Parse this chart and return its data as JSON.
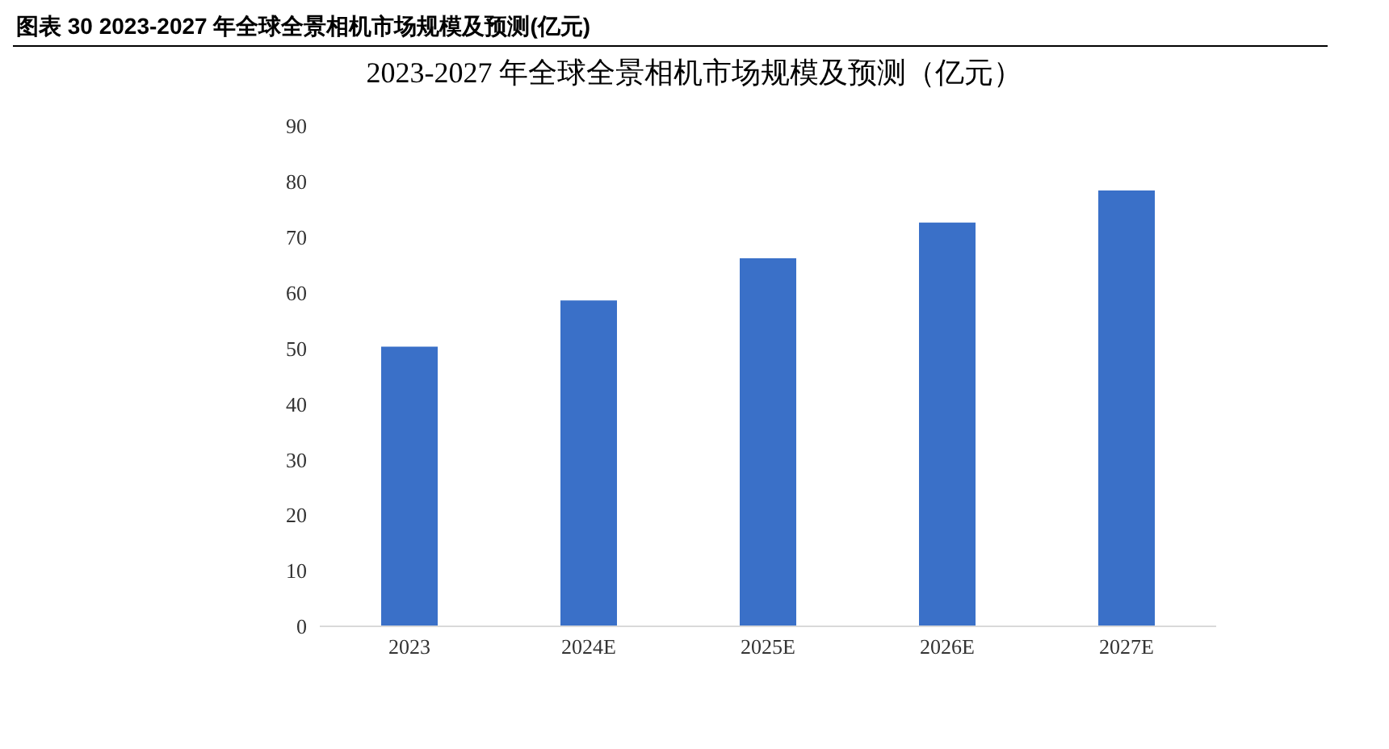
{
  "chart_data": {
    "type": "bar",
    "title": "图表 30 2023-2027 年全球全景相机市场规模及预测(亿元)",
    "subtitle": "2023-2027 年全球全景相机市场规模及预测（亿元）",
    "categories": [
      "2023",
      "2024E",
      "2025E",
      "2026E",
      "2027E"
    ],
    "values": [
      50.3,
      58.6,
      66.2,
      72.6,
      78.4
    ],
    "color": "#3a70c8",
    "ylim": [
      0,
      90
    ],
    "yticks": [
      0,
      10,
      20,
      30,
      40,
      50,
      60,
      70,
      80,
      90
    ],
    "grid": false
  }
}
